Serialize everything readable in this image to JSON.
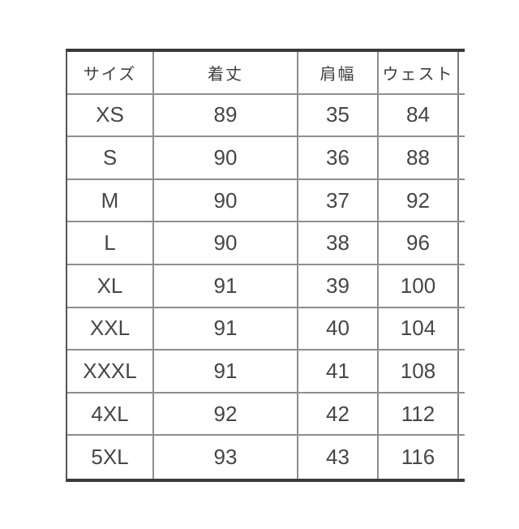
{
  "chart_data": {
    "type": "table",
    "columns": [
      "サイズ",
      "着丈",
      "肩幅",
      "ウェスト"
    ],
    "rows": [
      [
        "XS",
        "89",
        "35",
        "84"
      ],
      [
        "S",
        "90",
        "36",
        "88"
      ],
      [
        "M",
        "90",
        "37",
        "92"
      ],
      [
        "L",
        "90",
        "38",
        "96"
      ],
      [
        "XL",
        "91",
        "39",
        "100"
      ],
      [
        "XXL",
        "91",
        "40",
        "104"
      ],
      [
        "XXXL",
        "91",
        "41",
        "108"
      ],
      [
        "4XL",
        "92",
        "42",
        "112"
      ],
      [
        "5XL",
        "93",
        "43",
        "116"
      ]
    ],
    "layout": {
      "grid": "on",
      "header_row": true,
      "cell_alignment": "center"
    }
  },
  "colors": {
    "background": "#ffffff",
    "outer_border": "#3a3a3a",
    "inner_border": "#8e8e8e",
    "text": "#464646"
  }
}
